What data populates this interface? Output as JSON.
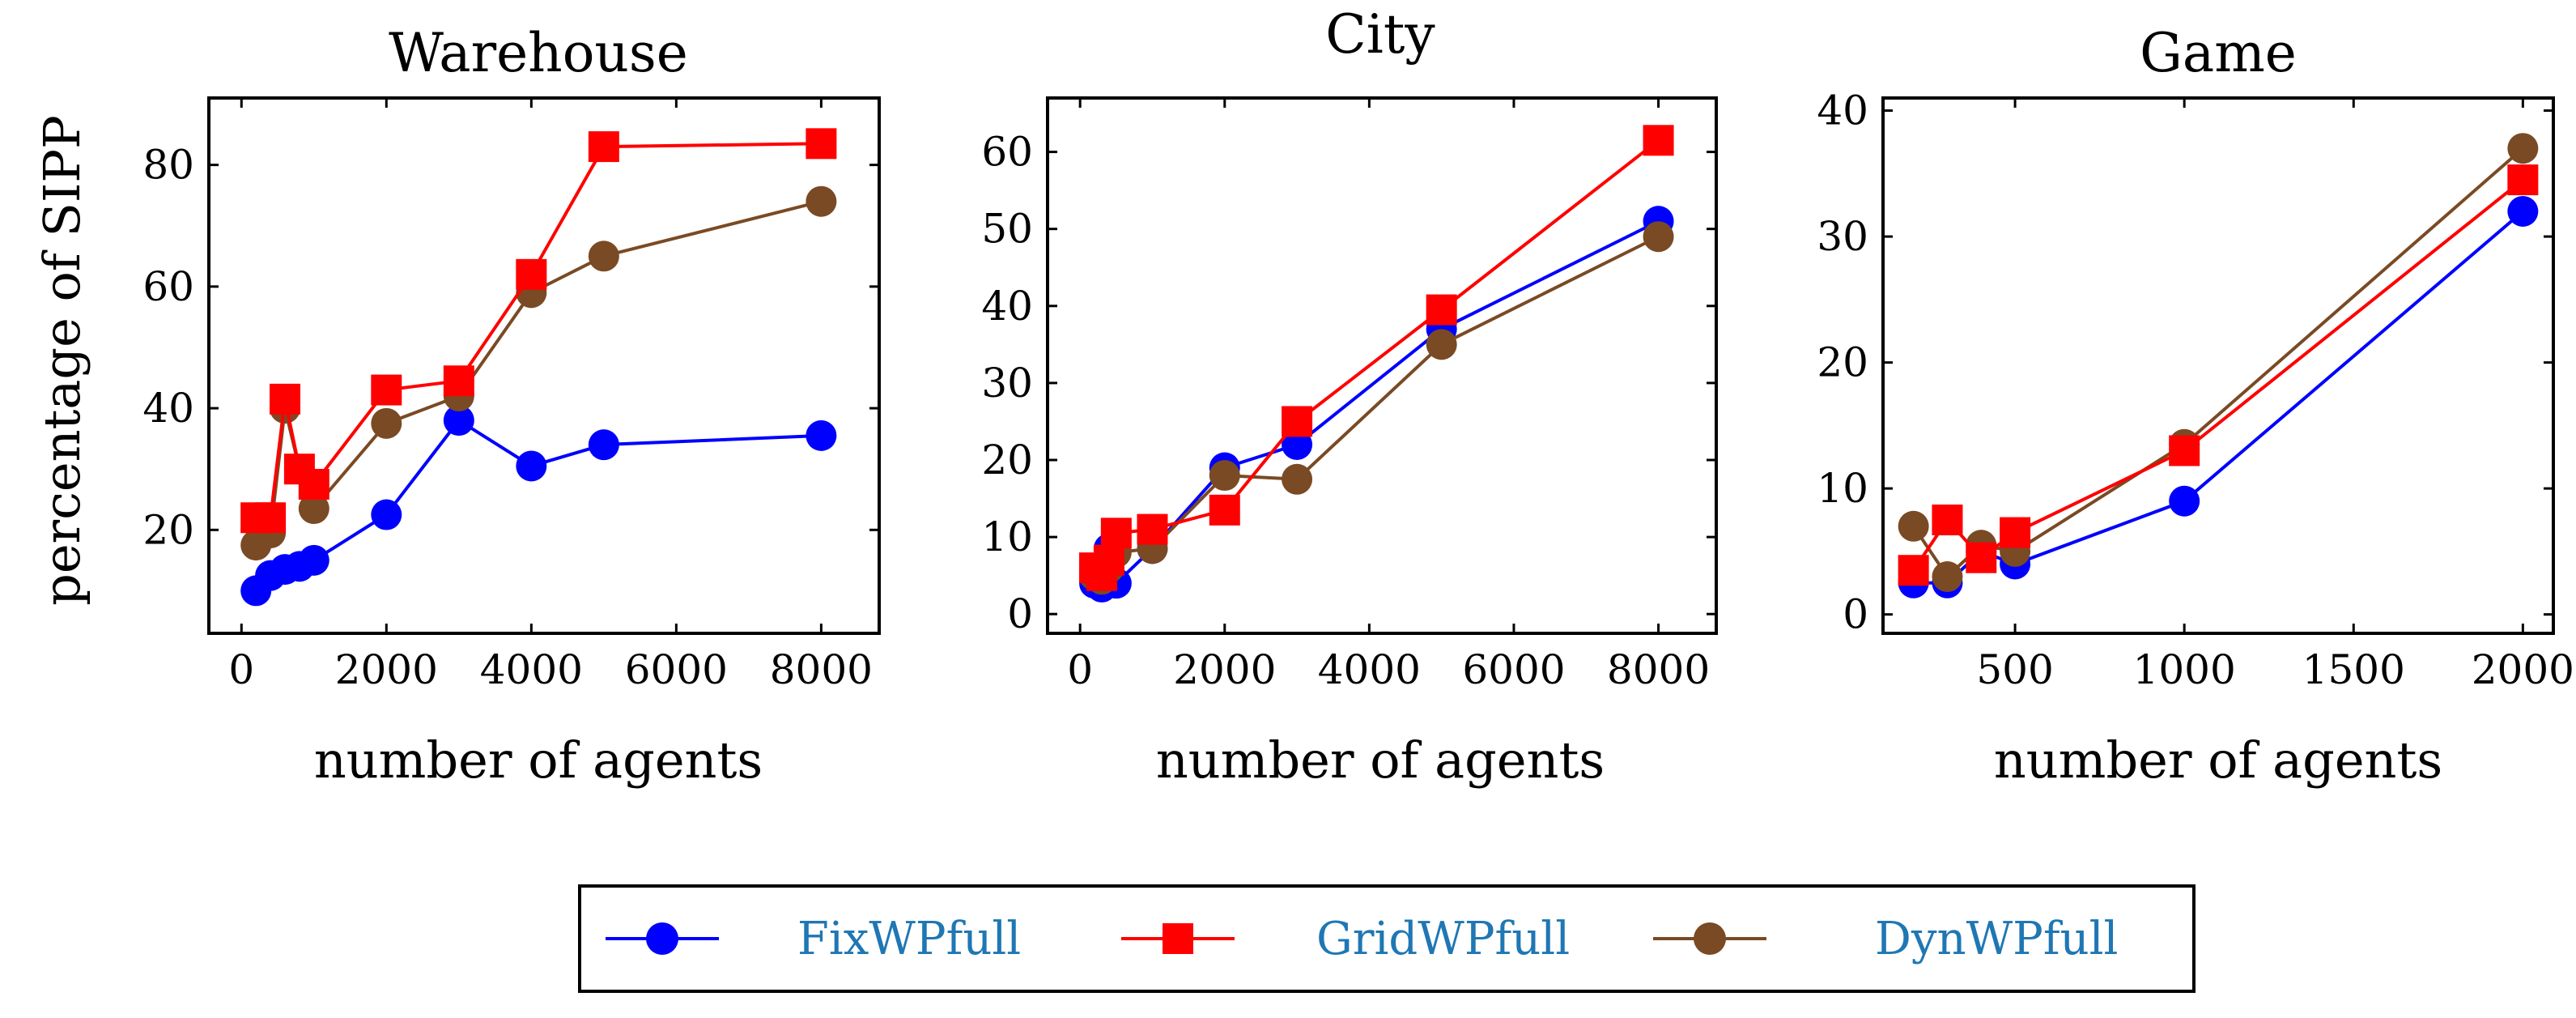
{
  "colors": {
    "FixWPfull": "#0000ff",
    "GridWPfull": "#ff0000",
    "DynWPfull": "#7a4a24",
    "legend_text": "#1f77b4"
  },
  "legend": [
    {
      "name": "FixWPfull",
      "marker": "circle"
    },
    {
      "name": "GridWPfull",
      "marker": "square"
    },
    {
      "name": "DynWPfull",
      "marker": "circle"
    }
  ],
  "chart_data": [
    {
      "type": "line",
      "title": "Warehouse",
      "xlabel": "number of agents",
      "ylabel": "percentage of SIPP",
      "xlim": [
        -450,
        8800
      ],
      "ylim": [
        3,
        91
      ],
      "xticks": [
        0,
        2000,
        4000,
        6000,
        8000
      ],
      "yticks": [
        20,
        40,
        60,
        80
      ],
      "series": [
        {
          "name": "FixWPfull",
          "x": [
            200,
            400,
            600,
            800,
            1000,
            2000,
            3000,
            4000,
            5000,
            8000
          ],
          "y": [
            10,
            12.5,
            13.5,
            14,
            15,
            22.5,
            38,
            30.5,
            34,
            35.5
          ]
        },
        {
          "name": "GridWPfull",
          "x": [
            200,
            400,
            600,
            800,
            1000,
            2000,
            3000,
            4000,
            5000,
            8000
          ],
          "y": [
            22,
            22,
            41.5,
            30,
            27.5,
            43,
            44.5,
            62,
            83,
            83.5
          ]
        },
        {
          "name": "DynWPfull",
          "x": [
            200,
            400,
            600,
            800,
            1000,
            2000,
            3000,
            4000,
            5000,
            8000
          ],
          "y": [
            17.5,
            19.5,
            40,
            30,
            23.5,
            37.5,
            42,
            59,
            65,
            74
          ]
        }
      ]
    },
    {
      "type": "line",
      "title": "City",
      "xlabel": "number of agents",
      "ylabel": "",
      "xlim": [
        -450,
        8800
      ],
      "ylim": [
        -2.5,
        67
      ],
      "xticks": [
        0,
        2000,
        4000,
        6000,
        8000
      ],
      "yticks": [
        0,
        10,
        20,
        30,
        40,
        50,
        60
      ],
      "series": [
        {
          "name": "FixWPfull",
          "x": [
            200,
            300,
            400,
            500,
            1000,
            2000,
            3000,
            5000,
            8000
          ],
          "y": [
            4,
            3.5,
            8.5,
            4,
            8.5,
            19,
            22,
            37,
            51
          ]
        },
        {
          "name": "GridWPfull",
          "x": [
            200,
            300,
            400,
            500,
            1000,
            2000,
            3000,
            5000,
            8000
          ],
          "y": [
            6,
            5,
            7,
            10.5,
            11,
            13.5,
            25,
            39.5,
            61.5
          ]
        },
        {
          "name": "DynWPfull",
          "x": [
            200,
            300,
            400,
            500,
            1000,
            2000,
            3000,
            5000,
            8000
          ],
          "y": [
            5,
            4.5,
            6,
            8,
            8.5,
            18,
            17.5,
            35,
            49
          ]
        }
      ]
    },
    {
      "type": "line",
      "title": "Game",
      "xlabel": "number of agents",
      "ylabel": "",
      "xlim": [
        110,
        2090
      ],
      "ylim": [
        -1.5,
        41
      ],
      "xticks": [
        500,
        1000,
        1500,
        2000
      ],
      "yticks": [
        0,
        10,
        20,
        30,
        40
      ],
      "series": [
        {
          "name": "FixWPfull",
          "x": [
            200,
            300,
            400,
            500,
            1000,
            2000
          ],
          "y": [
            2.5,
            2.5,
            5,
            4,
            9,
            32
          ]
        },
        {
          "name": "GridWPfull",
          "x": [
            200,
            300,
            400,
            500,
            1000,
            2000
          ],
          "y": [
            3.5,
            7.5,
            4.5,
            6.5,
            13,
            34.5
          ]
        },
        {
          "name": "DynWPfull",
          "x": [
            200,
            300,
            400,
            500,
            1000,
            2000
          ],
          "y": [
            7,
            3,
            5.5,
            5,
            13.5,
            37
          ]
        }
      ]
    }
  ]
}
